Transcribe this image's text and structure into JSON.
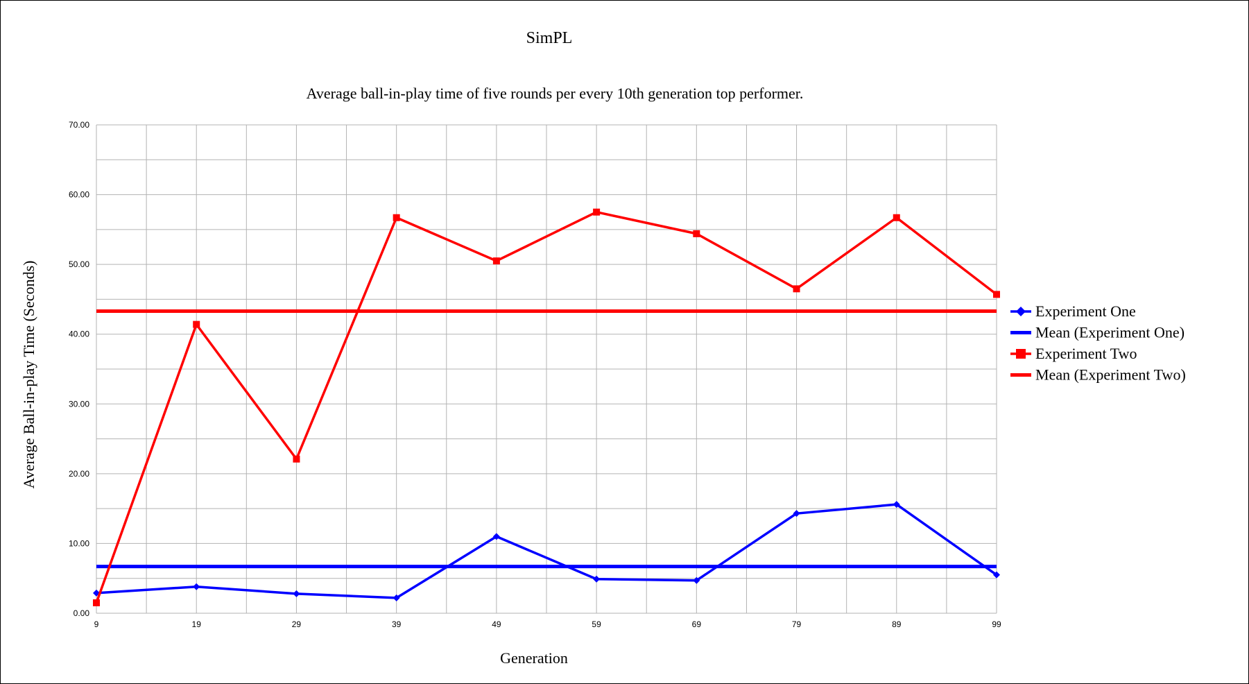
{
  "chart_data": {
    "type": "line",
    "title": "SimPL",
    "subtitle": "Average ball-in-play time of five rounds per every 10th generation top performer.",
    "xlabel": "Generation",
    "ylabel": "Average Ball-in-play Time (Seconds)",
    "x": [
      9,
      19,
      29,
      39,
      49,
      59,
      69,
      79,
      89,
      99
    ],
    "xlim": [
      9,
      99
    ],
    "ylim": [
      0,
      70
    ],
    "y_ticks": [
      "0.00",
      "10.00",
      "20.00",
      "30.00",
      "40.00",
      "50.00",
      "60.00",
      "70.00"
    ],
    "grid": true,
    "legend_position": "right",
    "series": [
      {
        "name": "Experiment One",
        "kind": "data",
        "marker": "diamond",
        "color": "#0000ff",
        "values": [
          2.9,
          3.8,
          2.8,
          2.2,
          11.0,
          4.9,
          4.7,
          14.3,
          15.6,
          5.5
        ]
      },
      {
        "name": "Mean (Experiment One)",
        "kind": "mean",
        "marker": "none",
        "color": "#0000ff",
        "values": [
          6.7,
          6.7,
          6.7,
          6.7,
          6.7,
          6.7,
          6.7,
          6.7,
          6.7,
          6.7
        ]
      },
      {
        "name": "Experiment Two",
        "kind": "data",
        "marker": "square",
        "color": "#ff0000",
        "values": [
          1.5,
          41.4,
          22.1,
          56.7,
          50.5,
          57.5,
          54.4,
          46.5,
          56.7,
          45.7
        ]
      },
      {
        "name": "Mean (Experiment Two)",
        "kind": "mean",
        "marker": "none",
        "color": "#ff0000",
        "values": [
          43.3,
          43.3,
          43.3,
          43.3,
          43.3,
          43.3,
          43.3,
          43.3,
          43.3,
          43.3
        ]
      }
    ]
  }
}
